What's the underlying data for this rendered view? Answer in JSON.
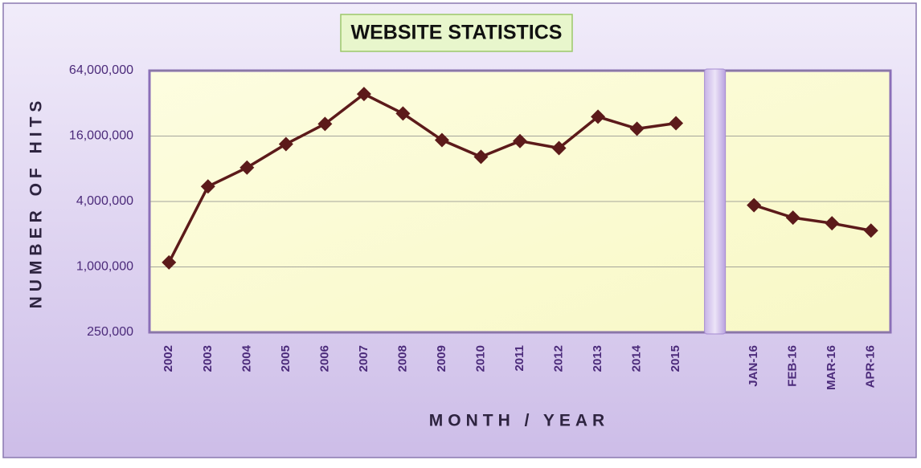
{
  "chart_data": {
    "type": "line",
    "title": "WEBSITE STATISTICS",
    "x_label": "MONTH / YEAR",
    "y_label": "NUMBER OF HITS",
    "categories": [
      "2002",
      "2003",
      "2004",
      "2005",
      "2006",
      "2007",
      "2008",
      "2009",
      "2010",
      "2011",
      "2012",
      "2013",
      "2014",
      "2015",
      null,
      "JAN-16",
      "FEB-16",
      "MAR-16",
      "APR-16"
    ],
    "values": [
      1100000,
      5500000,
      8200000,
      13500000,
      20700000,
      39000000,
      25800000,
      14700000,
      10300000,
      14400000,
      12400000,
      24100000,
      18700000,
      21000000,
      null,
      3700000,
      2840000,
      2520000,
      2160000
    ],
    "color": "#5c1a1a",
    "y_log": true,
    "ylim": [
      250000,
      64000000
    ],
    "yticks": [
      {
        "value": 250000,
        "label": "250,000"
      },
      {
        "value": 1000000,
        "label": "1,000,000"
      },
      {
        "value": 4000000,
        "label": "4,000,000"
      },
      {
        "value": 16000000,
        "label": "16,000,000"
      },
      {
        "value": 64000000,
        "label": "64,000,000"
      }
    ],
    "grid": true
  }
}
